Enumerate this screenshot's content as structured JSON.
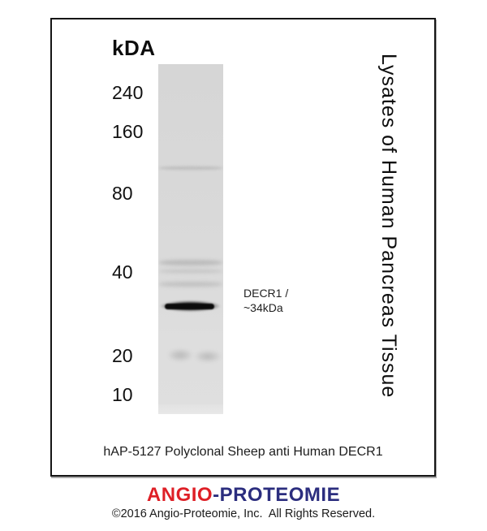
{
  "figure": {
    "unit_label": "kDA",
    "markers": [
      {
        "label": "240"
      },
      {
        "label": "160"
      },
      {
        "label": "80"
      },
      {
        "label": "40"
      },
      {
        "label": "20"
      },
      {
        "label": "10"
      }
    ],
    "marker_scale_kda": [
      240,
      160,
      80,
      40,
      20,
      10
    ],
    "band_annotation": {
      "line1": "DECR1 /",
      "line2": "~34kDa"
    },
    "side_label": "Lysates of Human Pancreas Tissue",
    "caption": "hAP-5127 Polyclonal Sheep anti Human DECR1"
  },
  "footer": {
    "brand": {
      "part1": "ANGIO",
      "separator": "-",
      "part2": "PROTEOMIE",
      "color_part1": "#de1f26",
      "color_part2": "#2b2d7e"
    },
    "copyright": "©2016 Angio-Proteomie, Inc.  All Rights Reserved."
  }
}
